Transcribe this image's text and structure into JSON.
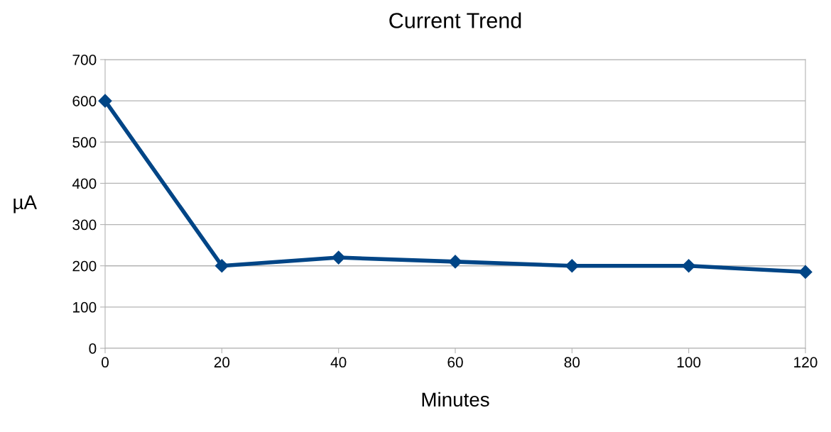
{
  "chart_data": {
    "type": "line",
    "title": "Current Trend",
    "xlabel": "Minutes",
    "ylabel": "µA",
    "x": [
      0,
      20,
      40,
      60,
      80,
      100,
      120
    ],
    "series": [
      {
        "color": "#004586",
        "values": [
          600,
          200,
          220,
          210,
          200,
          200,
          185
        ]
      }
    ],
    "xlim": [
      0,
      120
    ],
    "xticks": [
      0,
      20,
      40,
      60,
      80,
      100,
      120
    ],
    "ylim": [
      0,
      700
    ],
    "yticks": [
      0,
      100,
      200,
      300,
      400,
      500,
      600,
      700
    ],
    "grid": "y",
    "marker": "diamond",
    "line_style": "solid"
  }
}
